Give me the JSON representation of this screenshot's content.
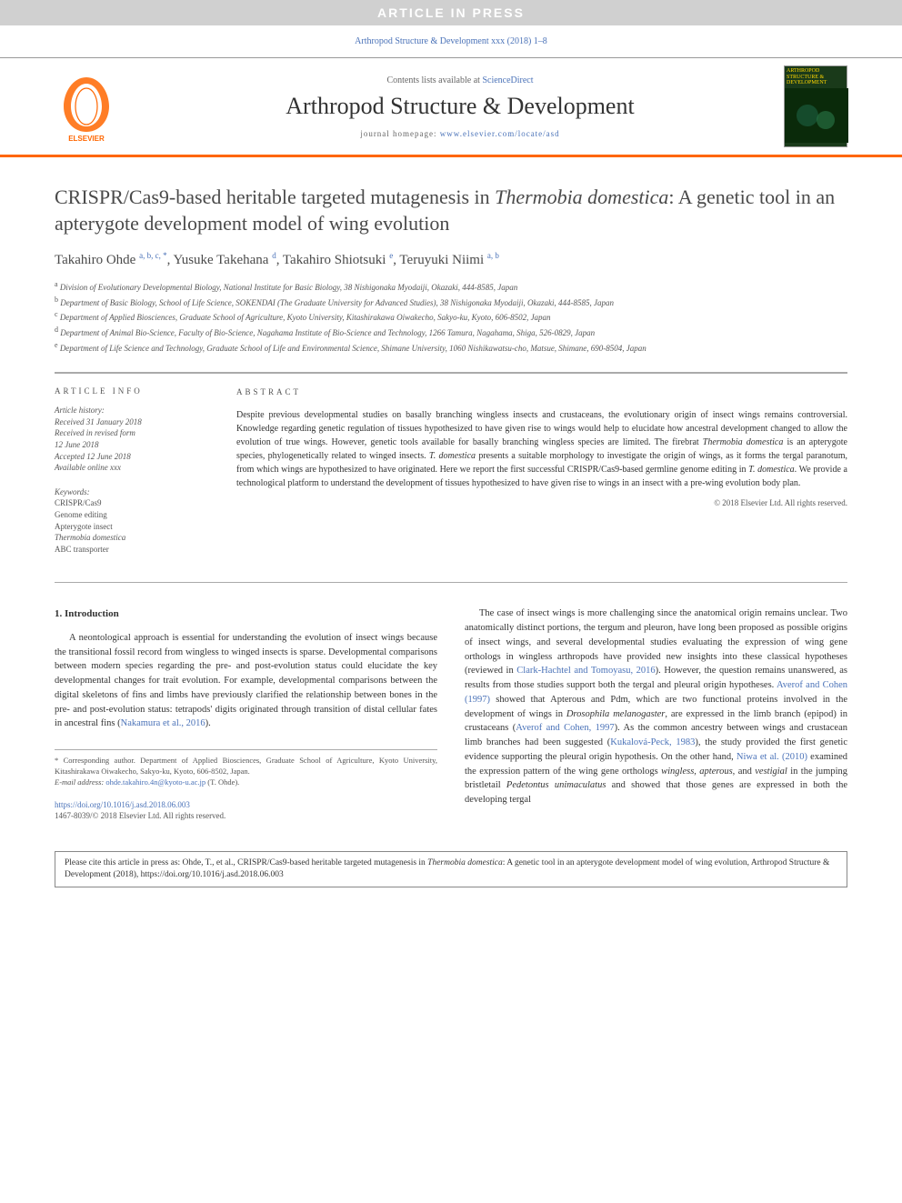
{
  "banner": {
    "text": "ARTICLE IN PRESS",
    "bg": "#d0d0d0",
    "fg": "#ffffff"
  },
  "citation_line": "Arthropod Structure & Development xxx (2018) 1–8",
  "masthead": {
    "contents_prefix": "Contents lists available at ",
    "contents_link": "ScienceDirect",
    "journal": "Arthropod Structure & Development",
    "homepage_prefix": "journal homepage: ",
    "homepage_url": "www.elsevier.com/locate/asd",
    "elsevier_label": "ELSEVIER",
    "cover_label": "ARTHROPOD STRUCTURE & DEVELOPMENT"
  },
  "title_parts": {
    "p1": "CRISPR/Cas9-based heritable targeted mutagenesis in ",
    "italic1": "Thermobia domestica",
    "p2": ": A genetic tool in an apterygote development model of wing evolution"
  },
  "authors_html": "Takahiro Ohde <sup>a, b, c, *</sup>, Yusuke Takehana <sup>d</sup>, Takahiro Shiotsuki <sup>e</sup>, Teruyuki Niimi <sup>a, b</sup>",
  "affiliations": [
    {
      "sup": "a",
      "text": "Division of Evolutionary Developmental Biology, National Institute for Basic Biology, 38 Nishigonaka Myodaiji, Okazaki, 444-8585, Japan"
    },
    {
      "sup": "b",
      "text": "Department of Basic Biology, School of Life Science, SOKENDAI (The Graduate University for Advanced Studies), 38 Nishigonaka Myodaiji, Okazaki, 444-8585, Japan"
    },
    {
      "sup": "c",
      "text": "Department of Applied Biosciences, Graduate School of Agriculture, Kyoto University, Kitashirakawa Oiwakecho, Sakyo-ku, Kyoto, 606-8502, Japan"
    },
    {
      "sup": "d",
      "text": "Department of Animal Bio-Science, Faculty of Bio-Science, Nagahama Institute of Bio-Science and Technology, 1266 Tamura, Nagahama, Shiga, 526-0829, Japan"
    },
    {
      "sup": "e",
      "text": "Department of Life Science and Technology, Graduate School of Life and Environmental Science, Shimane University, 1060 Nishikawatsu-cho, Matsue, Shimane, 690-8504, Japan"
    }
  ],
  "article_info": {
    "heading": "ARTICLE INFO",
    "history_label": "Article history:",
    "history": [
      "Received 31 January 2018",
      "Received in revised form",
      "12 June 2018",
      "Accepted 12 June 2018",
      "Available online xxx"
    ],
    "keywords_label": "Keywords:",
    "keywords": [
      {
        "text": "CRISPR/Cas9",
        "italic": false
      },
      {
        "text": "Genome editing",
        "italic": false
      },
      {
        "text": "Apterygote insect",
        "italic": false
      },
      {
        "text": "Thermobia domestica",
        "italic": true
      },
      {
        "text": "ABC transporter",
        "italic": false
      }
    ]
  },
  "abstract": {
    "heading": "ABSTRACT",
    "text_parts": [
      {
        "t": "Despite previous developmental studies on basally branching wingless insects and crustaceans, the evolutionary origin of insect wings remains controversial. Knowledge regarding genetic regulation of tissues hypothesized to have given rise to wings would help to elucidate how ancestral development changed to allow the evolution of true wings. However, genetic tools available for basally branching wingless species are limited. The firebrat "
      },
      {
        "t": "Thermobia domestica",
        "i": true
      },
      {
        "t": " is an apterygote species, phylogenetically related to winged insects. "
      },
      {
        "t": "T. domestica",
        "i": true
      },
      {
        "t": " presents a suitable morphology to investigate the origin of wings, as it forms the tergal paranotum, from which wings are hypothesized to have originated. Here we report the first successful CRISPR/Cas9-based germline genome editing in "
      },
      {
        "t": "T. domestica",
        "i": true
      },
      {
        "t": ". We provide a technological platform to understand the development of tissues hypothesized to have given rise to wings in an insect with a pre-wing evolution body plan."
      }
    ],
    "copyright": "© 2018 Elsevier Ltd. All rights reserved."
  },
  "intro": {
    "heading": "1. Introduction",
    "col1_parts": [
      {
        "t": "A neontological approach is essential for understanding the evolution of insect wings because the transitional fossil record from wingless to winged insects is sparse. Developmental comparisons between modern species regarding the pre- and post-evolution status could elucidate the key developmental changes for trait evolution. For example, developmental comparisons between the digital skeletons of fins and limbs have previously clarified the relationship between bones in the pre- and post-evolution status: tetrapods' digits originated through transition of distal cellular fates in ancestral fins ("
      },
      {
        "t": "Nakamura et al., 2016",
        "ref": true
      },
      {
        "t": ")."
      }
    ],
    "col2_parts": [
      {
        "t": "The case of insect wings is more challenging since the anatomical origin remains unclear. Two anatomically distinct portions, the tergum and pleuron, have long been proposed as possible origins of insect wings, and several developmental studies evaluating the expression of wing gene orthologs in wingless arthropods have provided new insights into these classical hypotheses (reviewed in "
      },
      {
        "t": "Clark-Hachtel and Tomoyasu, 2016",
        "ref": true
      },
      {
        "t": "). However, the question remains unanswered, as results from those studies support both the tergal and pleural origin hypotheses. "
      },
      {
        "t": "Averof and Cohen (1997)",
        "ref": true
      },
      {
        "t": " showed that Apterous and Pdm, which are two functional proteins involved in the development of wings in "
      },
      {
        "t": "Drosophila melanogaster",
        "i": true
      },
      {
        "t": ", are expressed in the limb branch (epipod) in crustaceans ("
      },
      {
        "t": "Averof and Cohen, 1997",
        "ref": true
      },
      {
        "t": "). As the common ancestry between wings and crustacean limb branches had been suggested ("
      },
      {
        "t": "Kukalová-Peck, 1983",
        "ref": true
      },
      {
        "t": "), the study provided the first genetic evidence supporting the pleural origin hypothesis. On the other hand, "
      },
      {
        "t": "Niwa et al. (2010)",
        "ref": true
      },
      {
        "t": " examined the expression pattern of the wing gene orthologs "
      },
      {
        "t": "wingless, apterous,",
        "i": true
      },
      {
        "t": " and "
      },
      {
        "t": "vestigial",
        "i": true
      },
      {
        "t": " in the jumping bristletail "
      },
      {
        "t": "Pedetontus unimaculatus",
        "i": true
      },
      {
        "t": " and showed that those genes are expressed in both the developing tergal"
      }
    ]
  },
  "footnote": {
    "corr_prefix": "* Corresponding author. ",
    "corr_text": "Department of Applied Biosciences, Graduate School of Agriculture, Kyoto University, Kitashirakawa Oiwakecho, Sakyo-ku, Kyoto, 606-8502, Japan.",
    "email_label": "E-mail address: ",
    "email": "ohde.takahiro.4n@kyoto-u.ac.jp",
    "email_who": " (T. Ohde)."
  },
  "doi": {
    "url": "https://doi.org/10.1016/j.asd.2018.06.003",
    "issn_line": "1467-8039/© 2018 Elsevier Ltd. All rights reserved."
  },
  "cite_box_parts": [
    {
      "t": "Please cite this article in press as: Ohde, T., et al., CRISPR/Cas9-based heritable targeted mutagenesis in "
    },
    {
      "t": "Thermobia domestica",
      "i": true
    },
    {
      "t": ": A genetic tool in an apterygote development model of wing evolution, Arthropod Structure & Development (2018), https://doi.org/10.1016/j.asd.2018.06.003"
    }
  ],
  "colors": {
    "accent": "#ff6600",
    "link": "#4a72b8",
    "text": "#333333",
    "muted": "#555555",
    "banner_bg": "#d0d0d0"
  },
  "typography": {
    "title_fontsize": 22,
    "journal_fontsize": 26,
    "body_fontsize": 10.5,
    "affil_fontsize": 9,
    "abstract_fontsize": 10
  }
}
